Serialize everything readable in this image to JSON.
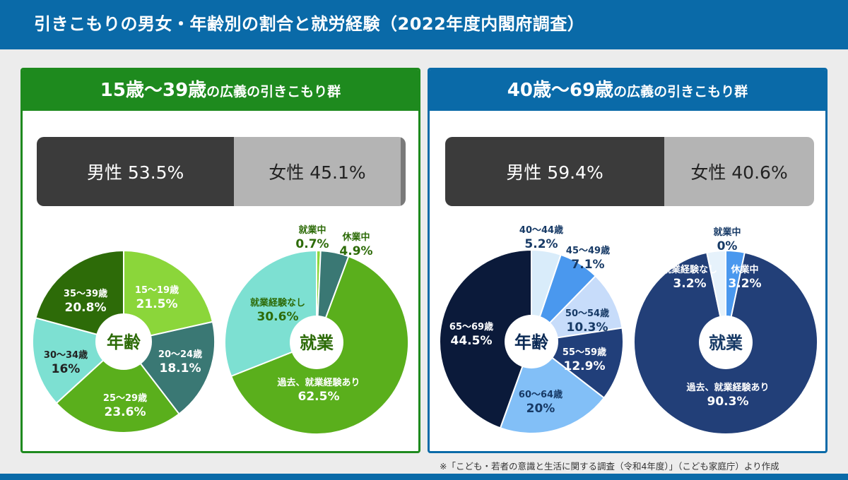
{
  "header": {
    "title": "引きこもりの男女・年齢別の割合と就労経験（2022年度内閣府調査）"
  },
  "panels": [
    {
      "title_main": "15歳〜39歳",
      "title_sub": "の広義の引きこもり群",
      "gender": {
        "male_label": "男性 53.5%",
        "female_label": "女性 45.1%",
        "male": 53.5,
        "female": 45.1
      }
    },
    {
      "title_main": "40歳〜69歳",
      "title_sub": "の広義の引きこもり群",
      "gender": {
        "male_label": "男性 59.4%",
        "female_label": "女性 40.6%",
        "male": 59.4,
        "female": 40.6
      }
    }
  ],
  "source_note": "※「こども・若者の意識と生活に関する調査（令和4年度）」（こども家庭庁）より作成",
  "colors": {
    "brand_blue": "#0a6aa8",
    "brand_green": "#1e8a1e"
  },
  "chart_data": [
    {
      "type": "pie",
      "center_label": "年齢",
      "categories": [
        "15〜19歳",
        "20〜24歳",
        "25〜29歳",
        "30〜34歳",
        "35〜39歳"
      ],
      "values": [
        21.5,
        18.1,
        23.6,
        16,
        20.8
      ],
      "value_labels": [
        "21.5%",
        "18.1%",
        "23.6%",
        "16%",
        "20.8%"
      ],
      "colors": [
        "#8bd63a",
        "#3a7874",
        "#5aaf1c",
        "#7de0d2",
        "#2d6b08"
      ]
    },
    {
      "type": "pie",
      "center_label": "就業",
      "categories": [
        "就業中",
        "休業中",
        "過去、就業経験あり",
        "就業経験なし"
      ],
      "values": [
        0.7,
        4.9,
        62.5,
        30.6
      ],
      "value_labels": [
        "0.7%",
        "4.9%",
        "62.5%",
        "30.6%"
      ],
      "colors": [
        "#8bd63a",
        "#3a7874",
        "#5aaf1c",
        "#7de0d2"
      ]
    },
    {
      "type": "pie",
      "center_label": "年齢",
      "categories": [
        "40〜44歳",
        "45〜49歳",
        "50〜54歳",
        "55〜59歳",
        "60〜64歳",
        "65〜69歳"
      ],
      "values": [
        5.2,
        7.1,
        10.3,
        12.9,
        20,
        44.5
      ],
      "value_labels": [
        "5.2%",
        "7.1%",
        "10.3%",
        "12.9%",
        "20%",
        "44.5%"
      ],
      "colors": [
        "#d9ecfa",
        "#4a98ee",
        "#c7dcfa",
        "#213f7a",
        "#82bff7",
        "#0b1a3a"
      ]
    },
    {
      "type": "pie",
      "center_label": "就業",
      "categories": [
        "就業中",
        "休業中",
        "過去、就業経験あり",
        "就業経験なし"
      ],
      "values": [
        0,
        3.2,
        90.3,
        3.2
      ],
      "value_labels": [
        "0%",
        "3.2%",
        "90.3%",
        "3.2%"
      ],
      "colors": [
        "#d9ecfa",
        "#4a98ee",
        "#223f78",
        "#e6f2fb"
      ]
    }
  ]
}
